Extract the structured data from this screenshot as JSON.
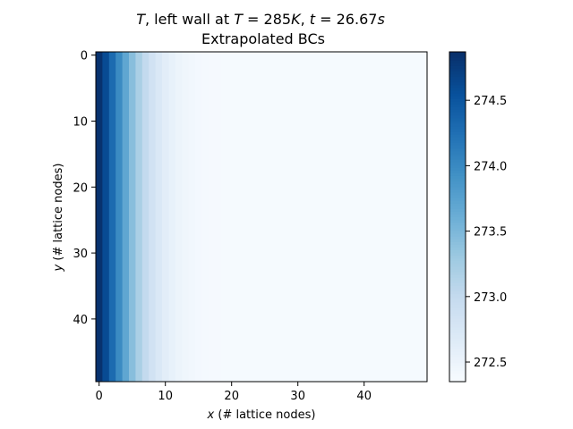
{
  "chart_data": {
    "type": "heatmap",
    "title": {
      "line1_parts": [
        {
          "text": "T",
          "italic": true
        },
        {
          "text": ", left wall at ",
          "italic": false
        },
        {
          "text": "T",
          "italic": true
        },
        {
          "text": " = 285",
          "italic": false
        },
        {
          "text": "K",
          "italic": true
        },
        {
          "text": ", ",
          "italic": false
        },
        {
          "text": "t",
          "italic": true
        },
        {
          "text": " = 26.67",
          "italic": false
        },
        {
          "text": "s",
          "italic": true
        }
      ],
      "line2": "Extrapolated BCs"
    },
    "xlabel_var": "x",
    "xlabel_rest": " (# lattice nodes)",
    "ylabel_var": "y",
    "ylabel_rest": " (# lattice nodes)",
    "grid": false,
    "colormap": "Blues",
    "colormap_stops": [
      "#f7fbff",
      "#deebf7",
      "#c6dbef",
      "#9ecae1",
      "#6baed6",
      "#4292c6",
      "#2171b5",
      "#08519c",
      "#08306b"
    ],
    "nx": 50,
    "ny": 50,
    "x_ticks": [
      0,
      10,
      20,
      30,
      40
    ],
    "x_tick_labels": [
      "0",
      "10",
      "20",
      "30",
      "40"
    ],
    "y_ticks": [
      0,
      10,
      20,
      30,
      40
    ],
    "y_tick_labels": [
      "0",
      "10",
      "20",
      "30",
      "40"
    ],
    "y_inverted": true,
    "column_temperature_profile_K": [
      274.85,
      274.61,
      274.3,
      273.99,
      273.7,
      273.43,
      273.2,
      273.0,
      272.84,
      272.72,
      272.62,
      272.55,
      272.49,
      272.45,
      272.42,
      272.4,
      272.39,
      272.38,
      272.38,
      272.37,
      272.37,
      272.37,
      272.37,
      272.37,
      272.37,
      272.37,
      272.37,
      272.37,
      272.37,
      272.37,
      272.37,
      272.37,
      272.37,
      272.37,
      272.37,
      272.37,
      272.37,
      272.37,
      272.37,
      272.37,
      272.37,
      272.37,
      272.37,
      272.37,
      272.37,
      272.37,
      272.37,
      272.37,
      272.37,
      272.37
    ],
    "colorbar": {
      "vmin": 272.35,
      "vmax": 274.87,
      "ticks": [
        272.5,
        273.0,
        273.5,
        274.0,
        274.5
      ],
      "tick_labels": [
        "272.5",
        "273.0",
        "273.5",
        "274.0",
        "274.5"
      ]
    }
  }
}
